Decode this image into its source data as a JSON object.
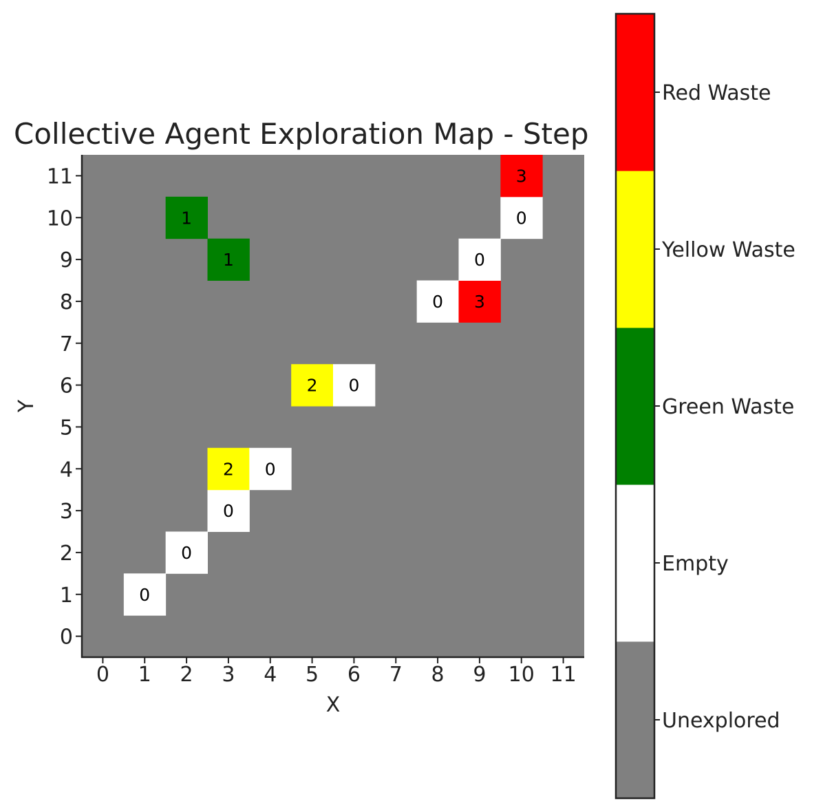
{
  "chart_data": {
    "type": "heatmap",
    "title": "Collective Agent Exploration Map - Step",
    "xlabel": "X",
    "ylabel": "Y",
    "x_ticks": [
      "0",
      "1",
      "2",
      "3",
      "4",
      "5",
      "6",
      "7",
      "8",
      "9",
      "10",
      "11"
    ],
    "y_ticks": [
      "0",
      "1",
      "2",
      "3",
      "4",
      "5",
      "6",
      "7",
      "8",
      "9",
      "10",
      "11"
    ],
    "grid_size": [
      12,
      12
    ],
    "default_value": -1,
    "cells": [
      {
        "x": 1,
        "y": 1,
        "value": 0,
        "label": "0"
      },
      {
        "x": 2,
        "y": 2,
        "value": 0,
        "label": "0"
      },
      {
        "x": 3,
        "y": 3,
        "value": 0,
        "label": "0"
      },
      {
        "x": 3,
        "y": 4,
        "value": 2,
        "label": "2"
      },
      {
        "x": 4,
        "y": 4,
        "value": 0,
        "label": "0"
      },
      {
        "x": 5,
        "y": 6,
        "value": 2,
        "label": "2"
      },
      {
        "x": 6,
        "y": 6,
        "value": 0,
        "label": "0"
      },
      {
        "x": 8,
        "y": 8,
        "value": 0,
        "label": "0"
      },
      {
        "x": 9,
        "y": 8,
        "value": 3,
        "label": "3"
      },
      {
        "x": 9,
        "y": 9,
        "value": 0,
        "label": "0"
      },
      {
        "x": 10,
        "y": 10,
        "value": 0,
        "label": "0"
      },
      {
        "x": 10,
        "y": 11,
        "value": 3,
        "label": "3"
      },
      {
        "x": 2,
        "y": 10,
        "value": 1,
        "label": "1"
      },
      {
        "x": 3,
        "y": 9,
        "value": 1,
        "label": "1"
      }
    ],
    "categories": [
      {
        "value": -1,
        "name": "Unexplored",
        "color": "#808080"
      },
      {
        "value": 0,
        "name": "Empty",
        "color": "#ffffff"
      },
      {
        "value": 1,
        "name": "Green Waste",
        "color": "#008000"
      },
      {
        "value": 2,
        "name": "Yellow Waste",
        "color": "#ffff00"
      },
      {
        "value": 3,
        "name": "Red Waste",
        "color": "#ff0000"
      }
    ],
    "colorbar_placement": "right"
  }
}
